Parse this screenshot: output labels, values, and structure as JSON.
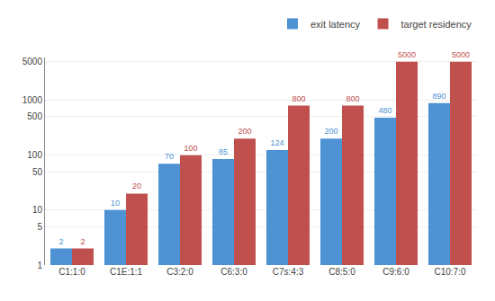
{
  "chart_data": {
    "type": "bar",
    "categories": [
      "C1:1:0",
      "C1E:1:1",
      "C3:2:0",
      "C6:3:0",
      "C7s:4:3",
      "C8:5:0",
      "C9:6:0",
      "C10:7:0"
    ],
    "series": [
      {
        "name": "exit latency",
        "color": "#4e92d4",
        "values": [
          2,
          10,
          70,
          85,
          124,
          200,
          480,
          890
        ]
      },
      {
        "name": "target residency",
        "color": "#c0504d",
        "values": [
          2,
          20,
          100,
          200,
          800,
          800,
          5000,
          5000
        ]
      }
    ],
    "log": "y",
    "ylim": [
      1,
      6000
    ],
    "yticks": [
      1,
      5,
      10,
      50,
      100,
      500,
      1000,
      5000
    ],
    "grid": true,
    "legend": "upper right",
    "data_labels": true
  }
}
